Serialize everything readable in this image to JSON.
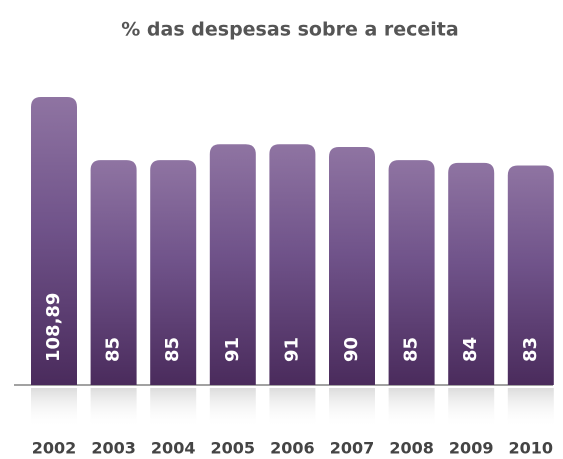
{
  "chart_data": {
    "type": "bar",
    "title": "% das despesas sobre a receita",
    "categories": [
      "2002",
      "2003",
      "2004",
      "2005",
      "2006",
      "2007",
      "2008",
      "2009",
      "2010"
    ],
    "values": [
      108.89,
      85,
      85,
      91,
      91,
      90,
      85,
      84,
      83
    ],
    "value_labels": [
      "108,89",
      "85",
      "85",
      "91",
      "91",
      "90",
      "85",
      "84",
      "83"
    ],
    "color": "#6e4f85"
  }
}
